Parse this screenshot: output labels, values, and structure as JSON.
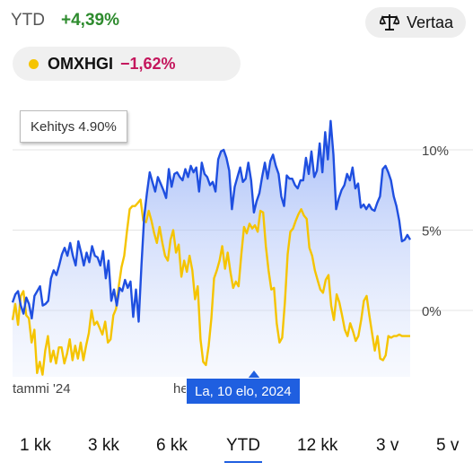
{
  "header": {
    "ytd_label": "YTD",
    "ytd_value": "+4,39%",
    "compare_label": "Vertaa",
    "compare_icon": "scale-icon"
  },
  "comparison": {
    "name": "OMXHGI",
    "value": "−1,62%",
    "dot_color": "#f5c400",
    "value_color": "#c4165c"
  },
  "tooltip_top": "Kehitys 4.90%",
  "date_tooltip": "La, 10 elo, 2024",
  "x_labels": [
    "tammi '24",
    "he"
  ],
  "tabs": [
    "1 kk",
    "3 kk",
    "6 kk",
    "YTD",
    "12 kk",
    "3 v",
    "5 v"
  ],
  "active_tab": "YTD",
  "chart_data": {
    "type": "line",
    "y_ticks": [
      "10%",
      "5%",
      "0%"
    ],
    "ylim": [
      -4,
      12.5
    ],
    "grid": true,
    "series": [
      {
        "name": "",
        "color": "#1f4fe0",
        "fill": true,
        "values": [
          0.5,
          1,
          1.2,
          0.3,
          -0.2,
          0.8,
          0.4,
          -0.5,
          0.9,
          1.2,
          1.5,
          0.3,
          0.4,
          0.6,
          2,
          2.5,
          2.2,
          2.8,
          3.5,
          3.9,
          3.4,
          4.2,
          3.4,
          2.8,
          4.3,
          3.6,
          2.8,
          3.6,
          3,
          4,
          3.4,
          3.3,
          2.8,
          3.7,
          2,
          3.1,
          0.6,
          1.3,
          0.3,
          1.4,
          1.2,
          1.9,
          1.4,
          1.8,
          -0.4,
          1.3,
          -0.7,
          2.8,
          5.8,
          7.3,
          8.6,
          8,
          7.4,
          8.3,
          7.9,
          7.5,
          7,
          8.8,
          7.7,
          8.5,
          8.6,
          8.3,
          8.1,
          8.8,
          8.3,
          9,
          8.6,
          8.9,
          7.4,
          9.2,
          8.5,
          8.3,
          7.8,
          8,
          7.4,
          9.4,
          9.9,
          10,
          9.5,
          8.7,
          6.3,
          7.7,
          8.3,
          8.9,
          8,
          8.2,
          9.2,
          8.1,
          6.1,
          6.8,
          7.3,
          8.3,
          9.2,
          8.2,
          9.3,
          9.7,
          9,
          8.5,
          7.1,
          6.5,
          8.4,
          8.2,
          8.2,
          7.8,
          7.6,
          8.1,
          8.1,
          9.5,
          8.5,
          9.9,
          8.3,
          8.7,
          10.4,
          8.6,
          11.1,
          9.4,
          11.8,
          9.7,
          6.3,
          7,
          7.5,
          7.8,
          8.5,
          8.1,
          8.9,
          7.6,
          7.9,
          6.4,
          6.6,
          6.3,
          6.6,
          6.3,
          6.2,
          6.7,
          7.1,
          8.8,
          9,
          8.6,
          8.1,
          7.1,
          6.5,
          5.6,
          4.3,
          4.4,
          4.7,
          4.4
        ]
      },
      {
        "name": "OMXHGI",
        "color": "#f5c400",
        "fill": false,
        "values": [
          -0.6,
          0.4,
          -0.9,
          0.9,
          1.2,
          -0.3,
          -0.5,
          -2,
          -1.2,
          -3.9,
          -3.2,
          -4,
          -2.5,
          -1.6,
          -3.2,
          -2.5,
          -3.3,
          -2.3,
          -2.3,
          -3.3,
          -2.7,
          -1.8,
          -3.1,
          -2.2,
          -3,
          -2,
          -3.1,
          -2.2,
          -1.4,
          0,
          -0.9,
          -0.7,
          -1.1,
          -1.5,
          -0.7,
          -2,
          -1.8,
          -0.3,
          0.1,
          1.5,
          2.7,
          3.4,
          4.9,
          6.3,
          6.5,
          6.5,
          6.7,
          6.9,
          5.6,
          5.5,
          6.2,
          5.6,
          4.8,
          4.2,
          5.2,
          4.2,
          3.4,
          3.1,
          4.4,
          5,
          3.6,
          4.1,
          2.1,
          3.1,
          2.4,
          3.4,
          2.5,
          0.7,
          1.5,
          -1.8,
          -3.2,
          -3.4,
          -2.2,
          -0.5,
          2,
          2.5,
          3.1,
          4,
          2.6,
          3.6,
          2.4,
          1.4,
          1.8,
          1.5,
          3.5,
          5.2,
          4.8,
          5.4,
          5.1,
          5.3,
          4.9,
          6.2,
          6.1,
          4,
          2.5,
          1.3,
          1.4,
          -0.8,
          -2,
          -1.7,
          0.5,
          3.5,
          4.9,
          5.1,
          5.6,
          6,
          6.3,
          5.9,
          5.7,
          3.9,
          3.4,
          2.5,
          1.9,
          1.3,
          1.1,
          1.9,
          2.2,
          0.3,
          -0.6,
          1,
          0.5,
          -0.3,
          -1.2,
          -1.6,
          -0.8,
          -1.3,
          -1.9,
          -1.6,
          -0.6,
          0.6,
          0.9,
          -0.3,
          -1.4,
          -2.5,
          -1.6,
          -3,
          -3.1,
          -2.8,
          -1.6,
          -1.7,
          -1.6,
          -1.6,
          -1.5,
          -1.6,
          -1.6,
          -1.6,
          -1.6
        ]
      }
    ]
  }
}
